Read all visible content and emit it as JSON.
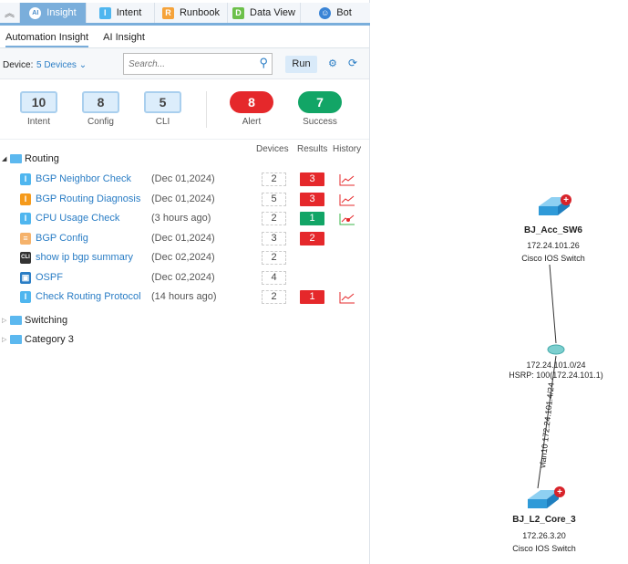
{
  "tabs": [
    {
      "label": "Insight",
      "icon": "ai-robot-icon"
    },
    {
      "label": "Intent",
      "icon": "intent-icon",
      "letter": "I"
    },
    {
      "label": "Runbook",
      "icon": "runbook-icon",
      "letter": "R"
    },
    {
      "label": "Data View",
      "icon": "data-view-icon",
      "letter": "D"
    },
    {
      "label": "Bot",
      "icon": "bot-icon"
    }
  ],
  "subtabs": [
    "Automation Insight",
    "AI Insight"
  ],
  "toolbar": {
    "device_label": "Device:",
    "device_value": "5 Devices",
    "search_placeholder": "Search...",
    "run_label": "Run"
  },
  "stats": [
    {
      "value": "10",
      "label": "Intent"
    },
    {
      "value": "8",
      "label": "Config"
    },
    {
      "value": "5",
      "label": "CLI"
    },
    {
      "value": "8",
      "label": "Alert",
      "color": "#e5282b"
    },
    {
      "value": "7",
      "label": "Success",
      "color": "#12a566"
    }
  ],
  "columns": {
    "devices": "Devices",
    "results": "Results",
    "history": "History"
  },
  "categories": [
    {
      "name": "Routing",
      "expanded": true
    },
    {
      "name": "Switching",
      "expanded": false
    },
    {
      "name": "Category 3",
      "expanded": false
    }
  ],
  "items": [
    {
      "name": "BGP Neighbor Check",
      "type": "intent",
      "date": "(Dec 01,2024)",
      "devices": "2",
      "result": "3",
      "result_color": "#e5282b",
      "history": "alert-trend"
    },
    {
      "name": "BGP Routing Diagnosis",
      "type": "intent-orange",
      "date": "(Dec 01,2024)",
      "devices": "5",
      "result": "3",
      "result_color": "#e5282b",
      "history": "alert-trend"
    },
    {
      "name": "CPU Usage Check",
      "type": "intent",
      "date": "(3 hours ago)",
      "devices": "2",
      "result": "1",
      "result_color": "#12a566",
      "history": "success-trend"
    },
    {
      "name": "BGP Config",
      "type": "config",
      "date": "(Dec 01,2024)",
      "devices": "3",
      "result": "2",
      "result_color": "#e5282b"
    },
    {
      "name": "show ip bgp summary",
      "type": "cli",
      "date": "(Dec 02,2024)",
      "devices": "2"
    },
    {
      "name": "OSPF",
      "type": "dataview",
      "date": "(Dec 02,2024)",
      "devices": "4"
    },
    {
      "name": "Check Routing Protocol",
      "type": "intent",
      "date": "(14 hours ago)",
      "devices": "2",
      "result": "1",
      "result_color": "#e5282b",
      "history": "alert-trend"
    }
  ],
  "map": {
    "devices": [
      {
        "name": "BJ_Acc_SW6",
        "ip": "172.24.101.26",
        "type": "Cisco IOS Switch"
      },
      {
        "name": "BJ_L2_Core_3",
        "ip": "172.26.3.20",
        "type": "Cisco IOS Switch"
      }
    ],
    "subnet": {
      "cidr": "172.24.101.0/24",
      "hsrp": "HSRP: 100(172.24.101.1)"
    },
    "link_label": "vlan10 172.24.101.4/24"
  }
}
